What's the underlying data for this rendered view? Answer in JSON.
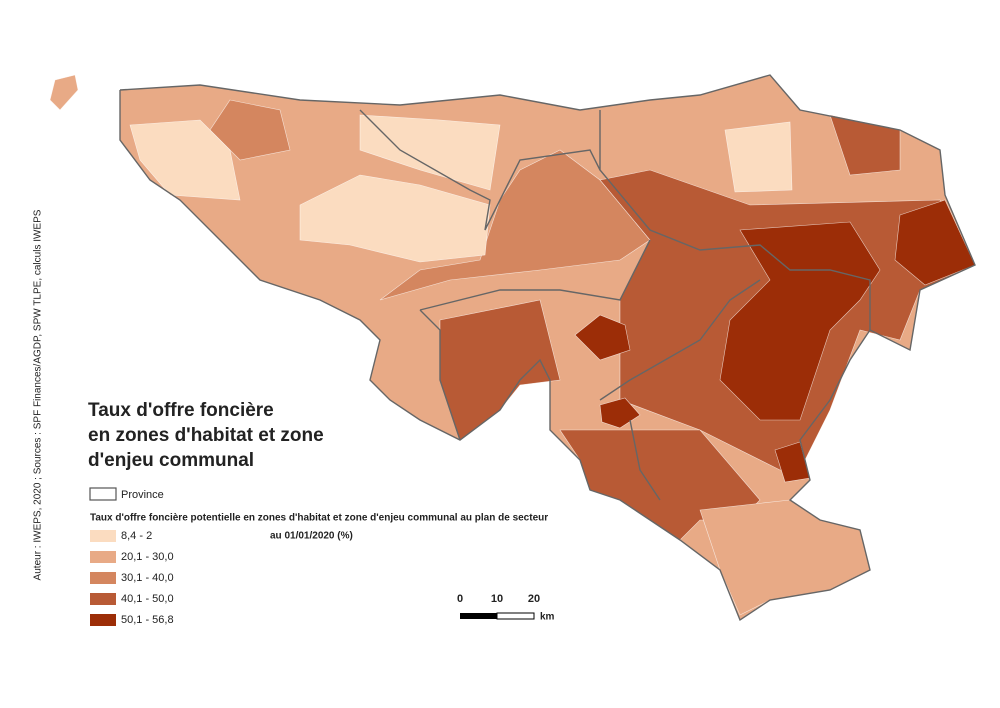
{
  "title_lines": [
    "Taux d'offre foncière",
    "en zones d'habitat et zone",
    "d'enjeu communal"
  ],
  "credit": "Auteur : IWEPS, 2020 ; Sources : SPF Finances/AGDP, SPW TLPE, calculs IWEPS",
  "legend": {
    "province": "Province",
    "subtitle_lines": [
      "Taux d'offre foncière potentielle en zones d'habitat et zone d'enjeu communal au plan de secteur",
      "au 01/01/2020 (%)"
    ],
    "classes": [
      {
        "label": "8,4 - 2",
        "color": "#fbdcc0"
      },
      {
        "label": "20,1 - 30,0",
        "color": "#e8aa86"
      },
      {
        "label": "30,1 - 40,0",
        "color": "#d4865f"
      },
      {
        "label": "40,1 - 50,0",
        "color": "#b85a35"
      },
      {
        "label": "50,1 - 56,8",
        "color": "#9c2d07"
      }
    ]
  },
  "scale_bar": {
    "ticks": [
      "0",
      "10",
      "20"
    ],
    "unit": "km"
  }
}
